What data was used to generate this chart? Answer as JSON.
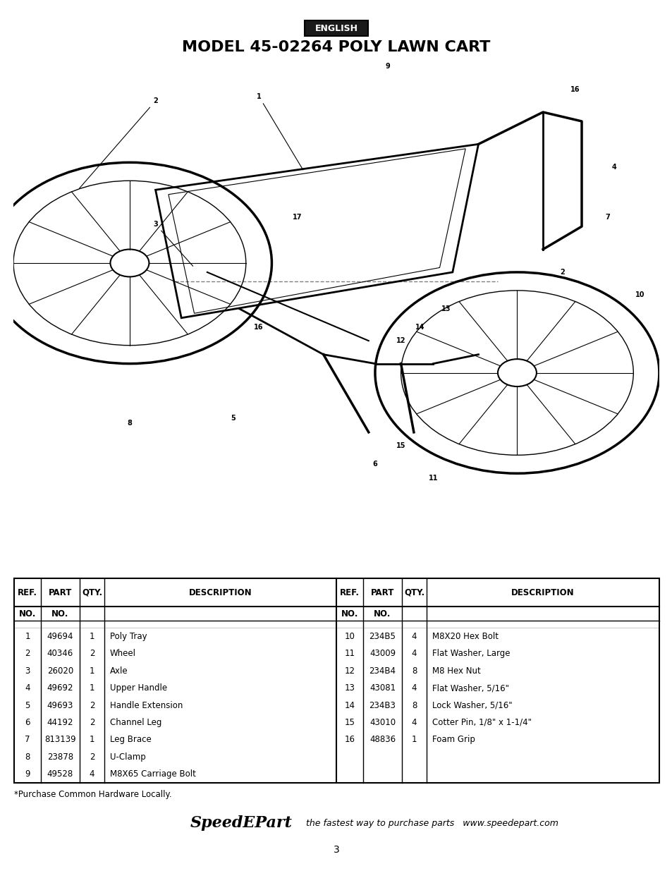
{
  "title": "MODEL 45-02264 POLY LAWN CART",
  "english_label": "ENGLISH",
  "page_number": "3",
  "footnote": "*Purchase Common Hardware Locally.",
  "speedepart_text": "SpeedEPart",
  "speedepart_tagline": " the fastest way to purchase parts   www.speedepart.com",
  "table_headers_left": [
    "REF.\nNO.",
    "PART\nNO.",
    "QTY.",
    "DESCRIPTION"
  ],
  "table_headers_right": [
    "REF.\nNO.",
    "PART\nNO.",
    "QTY.",
    "DESCRIPTION"
  ],
  "parts_left": [
    [
      "1",
      "49694",
      "1",
      "Poly Tray"
    ],
    [
      "2",
      "40346",
      "2",
      "Wheel"
    ],
    [
      "3",
      "26020",
      "1",
      "Axle"
    ],
    [
      "4",
      "49692",
      "1",
      "Upper Handle"
    ],
    [
      "5",
      "49693",
      "2",
      "Handle Extension"
    ],
    [
      "6",
      "44192",
      "2",
      "Channel Leg"
    ],
    [
      "7",
      "813139",
      "1",
      "Leg Brace"
    ],
    [
      "8",
      "23878",
      "2",
      "U-Clamp"
    ],
    [
      "9",
      "49528",
      "4",
      "M8X65 Carriage Bolt"
    ]
  ],
  "parts_right": [
    [
      "10",
      "234B5",
      "4",
      "M8X20 Hex Bolt"
    ],
    [
      "11",
      "43009",
      "4",
      "Flat Washer, Large"
    ],
    [
      "12",
      "234B4",
      "8",
      "M8 Hex Nut"
    ],
    [
      "13",
      "43081",
      "4",
      "Flat Washer, 5/16\""
    ],
    [
      "14",
      "234B3",
      "8",
      "Lock Washer, 5/16\""
    ],
    [
      "15",
      "43010",
      "4",
      "Cotter Pin, 1/8\" x 1-1/4\""
    ],
    [
      "16",
      "48836",
      "1",
      "Foam Grip"
    ]
  ],
  "bg_color": "#ffffff",
  "border_color": "#000000",
  "text_color": "#000000",
  "english_bg": "#1a1a1a",
  "english_text": "#ffffff"
}
